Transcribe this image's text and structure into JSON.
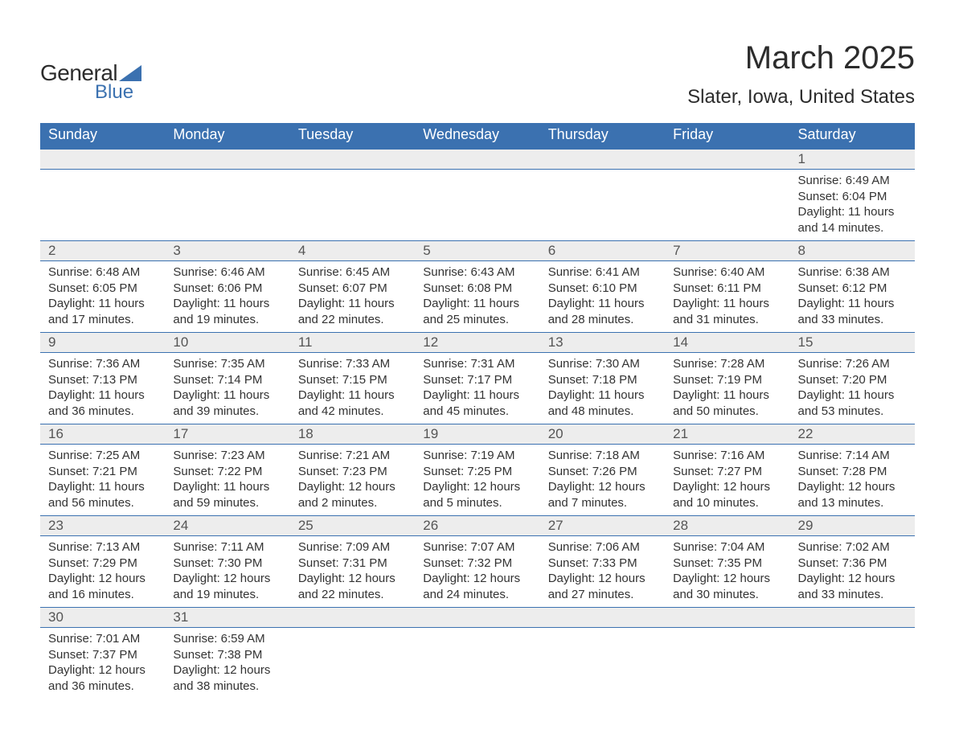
{
  "brand": {
    "line1": "General",
    "line2": "Blue",
    "accent": "#3b71b0"
  },
  "title": "March 2025",
  "location": "Slater, Iowa, United States",
  "colors": {
    "header_bg": "#3b71b0",
    "header_text": "#ffffff",
    "daynum_bg": "#ededed",
    "cell_border": "#3b71b0",
    "body_text": "#333333",
    "title_text": "#2c2c2c"
  },
  "typography": {
    "title_fontsize": 40,
    "location_fontsize": 24,
    "header_fontsize": 18,
    "daynum_fontsize": 17,
    "details_fontsize": 15,
    "font_family": "Arial"
  },
  "columns": [
    "Sunday",
    "Monday",
    "Tuesday",
    "Wednesday",
    "Thursday",
    "Friday",
    "Saturday"
  ],
  "weeks": [
    [
      {
        "day": "",
        "sunrise": "",
        "sunset": "",
        "daylight": ""
      },
      {
        "day": "",
        "sunrise": "",
        "sunset": "",
        "daylight": ""
      },
      {
        "day": "",
        "sunrise": "",
        "sunset": "",
        "daylight": ""
      },
      {
        "day": "",
        "sunrise": "",
        "sunset": "",
        "daylight": ""
      },
      {
        "day": "",
        "sunrise": "",
        "sunset": "",
        "daylight": ""
      },
      {
        "day": "",
        "sunrise": "",
        "sunset": "",
        "daylight": ""
      },
      {
        "day": "1",
        "sunrise": "Sunrise: 6:49 AM",
        "sunset": "Sunset: 6:04 PM",
        "daylight": "Daylight: 11 hours and 14 minutes."
      }
    ],
    [
      {
        "day": "2",
        "sunrise": "Sunrise: 6:48 AM",
        "sunset": "Sunset: 6:05 PM",
        "daylight": "Daylight: 11 hours and 17 minutes."
      },
      {
        "day": "3",
        "sunrise": "Sunrise: 6:46 AM",
        "sunset": "Sunset: 6:06 PM",
        "daylight": "Daylight: 11 hours and 19 minutes."
      },
      {
        "day": "4",
        "sunrise": "Sunrise: 6:45 AM",
        "sunset": "Sunset: 6:07 PM",
        "daylight": "Daylight: 11 hours and 22 minutes."
      },
      {
        "day": "5",
        "sunrise": "Sunrise: 6:43 AM",
        "sunset": "Sunset: 6:08 PM",
        "daylight": "Daylight: 11 hours and 25 minutes."
      },
      {
        "day": "6",
        "sunrise": "Sunrise: 6:41 AM",
        "sunset": "Sunset: 6:10 PM",
        "daylight": "Daylight: 11 hours and 28 minutes."
      },
      {
        "day": "7",
        "sunrise": "Sunrise: 6:40 AM",
        "sunset": "Sunset: 6:11 PM",
        "daylight": "Daylight: 11 hours and 31 minutes."
      },
      {
        "day": "8",
        "sunrise": "Sunrise: 6:38 AM",
        "sunset": "Sunset: 6:12 PM",
        "daylight": "Daylight: 11 hours and 33 minutes."
      }
    ],
    [
      {
        "day": "9",
        "sunrise": "Sunrise: 7:36 AM",
        "sunset": "Sunset: 7:13 PM",
        "daylight": "Daylight: 11 hours and 36 minutes."
      },
      {
        "day": "10",
        "sunrise": "Sunrise: 7:35 AM",
        "sunset": "Sunset: 7:14 PM",
        "daylight": "Daylight: 11 hours and 39 minutes."
      },
      {
        "day": "11",
        "sunrise": "Sunrise: 7:33 AM",
        "sunset": "Sunset: 7:15 PM",
        "daylight": "Daylight: 11 hours and 42 minutes."
      },
      {
        "day": "12",
        "sunrise": "Sunrise: 7:31 AM",
        "sunset": "Sunset: 7:17 PM",
        "daylight": "Daylight: 11 hours and 45 minutes."
      },
      {
        "day": "13",
        "sunrise": "Sunrise: 7:30 AM",
        "sunset": "Sunset: 7:18 PM",
        "daylight": "Daylight: 11 hours and 48 minutes."
      },
      {
        "day": "14",
        "sunrise": "Sunrise: 7:28 AM",
        "sunset": "Sunset: 7:19 PM",
        "daylight": "Daylight: 11 hours and 50 minutes."
      },
      {
        "day": "15",
        "sunrise": "Sunrise: 7:26 AM",
        "sunset": "Sunset: 7:20 PM",
        "daylight": "Daylight: 11 hours and 53 minutes."
      }
    ],
    [
      {
        "day": "16",
        "sunrise": "Sunrise: 7:25 AM",
        "sunset": "Sunset: 7:21 PM",
        "daylight": "Daylight: 11 hours and 56 minutes."
      },
      {
        "day": "17",
        "sunrise": "Sunrise: 7:23 AM",
        "sunset": "Sunset: 7:22 PM",
        "daylight": "Daylight: 11 hours and 59 minutes."
      },
      {
        "day": "18",
        "sunrise": "Sunrise: 7:21 AM",
        "sunset": "Sunset: 7:23 PM",
        "daylight": "Daylight: 12 hours and 2 minutes."
      },
      {
        "day": "19",
        "sunrise": "Sunrise: 7:19 AM",
        "sunset": "Sunset: 7:25 PM",
        "daylight": "Daylight: 12 hours and 5 minutes."
      },
      {
        "day": "20",
        "sunrise": "Sunrise: 7:18 AM",
        "sunset": "Sunset: 7:26 PM",
        "daylight": "Daylight: 12 hours and 7 minutes."
      },
      {
        "day": "21",
        "sunrise": "Sunrise: 7:16 AM",
        "sunset": "Sunset: 7:27 PM",
        "daylight": "Daylight: 12 hours and 10 minutes."
      },
      {
        "day": "22",
        "sunrise": "Sunrise: 7:14 AM",
        "sunset": "Sunset: 7:28 PM",
        "daylight": "Daylight: 12 hours and 13 minutes."
      }
    ],
    [
      {
        "day": "23",
        "sunrise": "Sunrise: 7:13 AM",
        "sunset": "Sunset: 7:29 PM",
        "daylight": "Daylight: 12 hours and 16 minutes."
      },
      {
        "day": "24",
        "sunrise": "Sunrise: 7:11 AM",
        "sunset": "Sunset: 7:30 PM",
        "daylight": "Daylight: 12 hours and 19 minutes."
      },
      {
        "day": "25",
        "sunrise": "Sunrise: 7:09 AM",
        "sunset": "Sunset: 7:31 PM",
        "daylight": "Daylight: 12 hours and 22 minutes."
      },
      {
        "day": "26",
        "sunrise": "Sunrise: 7:07 AM",
        "sunset": "Sunset: 7:32 PM",
        "daylight": "Daylight: 12 hours and 24 minutes."
      },
      {
        "day": "27",
        "sunrise": "Sunrise: 7:06 AM",
        "sunset": "Sunset: 7:33 PM",
        "daylight": "Daylight: 12 hours and 27 minutes."
      },
      {
        "day": "28",
        "sunrise": "Sunrise: 7:04 AM",
        "sunset": "Sunset: 7:35 PM",
        "daylight": "Daylight: 12 hours and 30 minutes."
      },
      {
        "day": "29",
        "sunrise": "Sunrise: 7:02 AM",
        "sunset": "Sunset: 7:36 PM",
        "daylight": "Daylight: 12 hours and 33 minutes."
      }
    ],
    [
      {
        "day": "30",
        "sunrise": "Sunrise: 7:01 AM",
        "sunset": "Sunset: 7:37 PM",
        "daylight": "Daylight: 12 hours and 36 minutes."
      },
      {
        "day": "31",
        "sunrise": "Sunrise: 6:59 AM",
        "sunset": "Sunset: 7:38 PM",
        "daylight": "Daylight: 12 hours and 38 minutes."
      },
      {
        "day": "",
        "sunrise": "",
        "sunset": "",
        "daylight": ""
      },
      {
        "day": "",
        "sunrise": "",
        "sunset": "",
        "daylight": ""
      },
      {
        "day": "",
        "sunrise": "",
        "sunset": "",
        "daylight": ""
      },
      {
        "day": "",
        "sunrise": "",
        "sunset": "",
        "daylight": ""
      },
      {
        "day": "",
        "sunrise": "",
        "sunset": "",
        "daylight": ""
      }
    ]
  ]
}
